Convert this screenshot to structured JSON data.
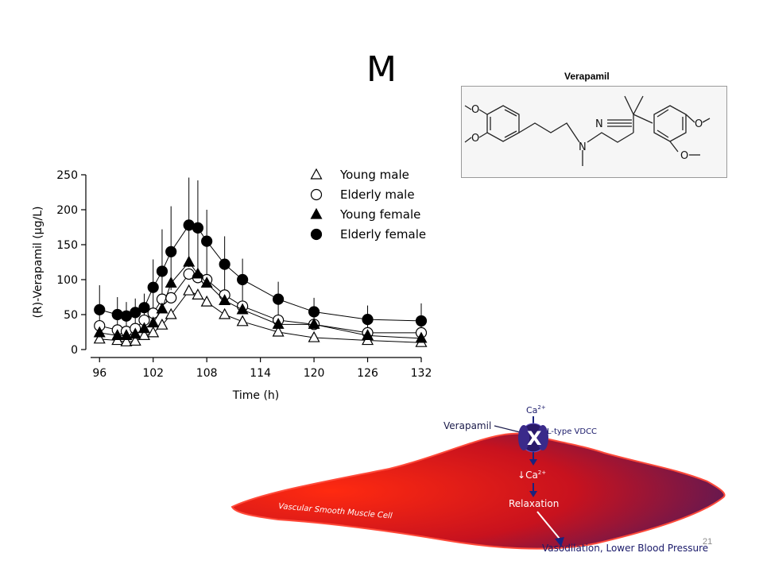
{
  "slide": {
    "title": "M",
    "slide_number": "21"
  },
  "structure": {
    "caption": "Verapamil",
    "atom_labels": [
      "N",
      "N",
      "O",
      "O",
      "O",
      "O"
    ]
  },
  "chart_data": {
    "type": "line",
    "x": [
      96,
      98,
      99,
      100,
      101,
      102,
      103,
      104,
      106,
      107,
      108,
      110,
      112,
      116,
      120,
      126,
      132
    ],
    "xticks": [
      "96",
      "102",
      "108",
      "114",
      "120",
      "126",
      "132"
    ],
    "xlim": [
      95,
      132
    ],
    "xlabel": "Time (h)",
    "yticks": [
      "0",
      "50",
      "100",
      "150",
      "200",
      "250"
    ],
    "ylim": [
      0,
      250
    ],
    "ylabel": "(R)-Verapamil (µg/L)",
    "legend": "top-right",
    "series": [
      {
        "name": "Young male",
        "marker": "triangle-open",
        "values": [
          15,
          13,
          11,
          12,
          20,
          24,
          35,
          50,
          84,
          78,
          68,
          50,
          40,
          25,
          17,
          13,
          10
        ],
        "err_up": [
          0,
          0,
          0,
          0,
          0,
          0,
          0,
          0,
          0,
          0,
          0,
          0,
          0,
          0,
          0,
          0,
          0
        ]
      },
      {
        "name": "Elderly male",
        "marker": "circle-open",
        "values": [
          34,
          28,
          26,
          30,
          42,
          52,
          72,
          74,
          108,
          103,
          100,
          78,
          62,
          42,
          36,
          24,
          24
        ],
        "err_up": [
          0,
          0,
          0,
          0,
          0,
          0,
          0,
          0,
          0,
          0,
          0,
          0,
          0,
          0,
          0,
          0,
          0
        ]
      },
      {
        "name": "Young female",
        "marker": "triangle-filled",
        "values": [
          24,
          20,
          20,
          22,
          30,
          38,
          58,
          95,
          125,
          108,
          95,
          70,
          57,
          36,
          36,
          20,
          16
        ],
        "err_up": [
          0,
          0,
          0,
          0,
          0,
          0,
          0,
          0,
          0,
          0,
          0,
          0,
          0,
          0,
          0,
          0,
          0
        ]
      },
      {
        "name": "Elderly female",
        "marker": "circle-filled",
        "values": [
          57,
          50,
          48,
          53,
          60,
          89,
          112,
          140,
          178,
          174,
          155,
          122,
          100,
          72,
          54,
          43,
          41
        ],
        "err_up": [
          35,
          25,
          20,
          20,
          20,
          40,
          60,
          65,
          68,
          68,
          45,
          40,
          30,
          25,
          20,
          20,
          25
        ],
        "err_down": [
          30,
          25,
          20,
          20,
          20,
          30,
          50,
          55,
          60,
          65,
          55,
          40,
          30,
          25,
          18,
          18,
          18
        ]
      }
    ]
  },
  "diagram": {
    "cell_label": "Vascular Smooth Muscle Cell",
    "drug_label": "Verapamil",
    "channel_label": "L-type VDCC",
    "block_symbol": "X",
    "ca_in": "Ca",
    "ca_in_charge": "2+",
    "ca_reduced_arrow": "↓",
    "ca_reduced": "Ca",
    "ca_reduced_charge": "2+",
    "relaxation": "Relaxation",
    "outcome": "Vasodilation, Lower Blood Pressure",
    "colors": {
      "cell_red": "#e01010",
      "cell_dark": "#6a1a5a",
      "channel": "#2a1a6a",
      "arrow": "#1a237e"
    }
  }
}
